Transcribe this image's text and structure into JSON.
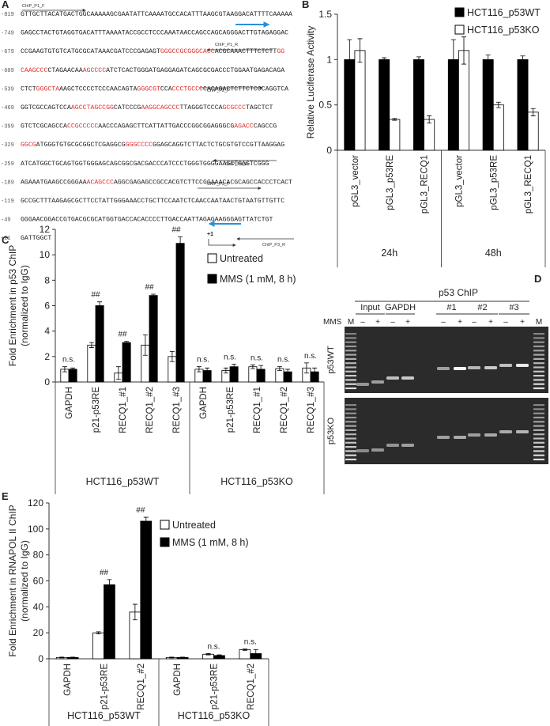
{
  "panels": [
    "A",
    "B",
    "C",
    "D",
    "E"
  ],
  "sequence": {
    "lines": [
      {
        "position": "-819",
        "parts": [
          "GTTGCTTACATGACTGGCAAAAAGCGAATATTCAAAATGCCACATTTAAGCGTAAGGACATTTTCAAAAA"
        ]
      },
      {
        "position": "-749",
        "parts": [
          "GAGCCTACTGTAGGTGACATTTAAAATACCGCCTCCCAAATAACCAGCCAGCAGGGACTTGTAGAGGAC"
        ]
      },
      {
        "position": "-679",
        "parts": [
          "CCGAAGTGTGTCATGCGCATAAACGATCCCGAGAGT",
          {
            "text": "GGGCCGCGGGCACC",
            "color": "#e03030"
          },
          "ACGCAAACTTTCTCTT",
          {
            "text": "GG",
            "color": "#e03030"
          }
        ]
      },
      {
        "position": "-609",
        "parts": [
          {
            "text": "CAAGCCC",
            "color": "#e03030"
          },
          "CTAGAACAA",
          {
            "text": "AGCCCC",
            "color": "#e03030"
          },
          "ATCTCACTGGGATGAGGAGATCAGCGCGACCCTGGAATGAGACAGA"
        ]
      },
      {
        "position": "-539",
        "parts": [
          "CTCT",
          {
            "text": "GGGCTA",
            "color": "#e03030"
          },
          "AAGCTCCCCTCCCAACAGTA",
          {
            "text": "GGGCGT",
            "color": "#e03030"
          },
          "CCA",
          {
            "text": "CCCTGCCC",
            "color": "#e03030"
          },
          "CACAGACTCTTCTCCCAGGTCA"
        ]
      },
      {
        "position": "-469",
        "parts": [
          "GGTCGCCAGTCCA",
          {
            "text": "AGCCTAGCCGG",
            "color": "#e03030"
          },
          "CATCCCG",
          {
            "text": "AAGGCAGCCC",
            "color": "#e03030"
          },
          "TTAGGGTCCCA",
          {
            "text": "GCGCCC",
            "color": "#e03030"
          },
          "TAGCTCT"
        ]
      },
      {
        "position": "-399",
        "parts": [
          "GTCTCGCAGCCA",
          {
            "text": "CCGCCCCC",
            "color": "#e03030"
          },
          "AACCCAGAGCTTCATTATTGACCCGGCGGAGGGCG",
          {
            "text": "AGACC",
            "color": "#e03030"
          },
          "CAGCCG"
        ]
      },
      {
        "position": "-329",
        "parts": [
          {
            "text": "GGCG",
            "color": "#e03030"
          },
          "ATGGGTGTGCGCGGCTCGAGGCG",
          {
            "text": "GGGCCCC",
            "color": "#e03030"
          },
          "GGAGCAGGTCTTACTCTGCGTGTCCGTTAAGGAG"
        ]
      },
      {
        "position": "-259",
        "parts": [
          "ATCATGGCTGCAGTGGTGGGAGCAGCGGCGACGACCCATCCCTGGGTGGGGAAGCTGAGTCGGG"
        ]
      },
      {
        "position": "-189",
        "parts": [
          "AGAAATGAAGCCGGGAA",
          {
            "text": "ACAGCCC",
            "color": "#e03030"
          },
          "AGGCGAGAGCCGCCACGTCTTCCGGAAACACGCAGCCACCCTCACT"
        ]
      },
      {
        "position": "-119",
        "parts": [
          "GCCGCTTTAAGAGCGCTTCCTATTGGGAAACCTGCTTCCAATCTCAACCAATAACTGTAATGTTGTTC"
        ]
      },
      {
        "position": "-49",
        "parts": [
          "GGGAACGGACCGTGACGCGCATGGTGACCACACCCCTTGACCAATTAGAGAAGGGAGTTATCTGT"
        ]
      },
      {
        "position": "+21",
        "parts": [
          "GATTGGCT"
        ]
      }
    ],
    "primers": [
      "ChIP_P1_F",
      "ChIP_P1_R",
      "ChIP_P2_F",
      "ChIP_P2_R",
      "ChIP_P3_F",
      "ChIP_P3_R"
    ],
    "tss": "+1"
  },
  "gel": {
    "title": "p53 ChIP",
    "lanes": [
      "Input",
      "GAPDH",
      "#1",
      "#2",
      "#3"
    ],
    "treatment_label": "MMS",
    "marker": "M",
    "treatments": [
      "–",
      "+"
    ],
    "rows": [
      "p53WT",
      "p53KO"
    ]
  },
  "chart_data": [
    {
      "type": "bar",
      "ylabel": [
        "Relative Luciferase Activity"
      ],
      "categories": [
        "pGL3_vector",
        "pGL3_p53RE",
        "pGL3_RECQ1",
        "pGL3_vector",
        "pGL3_p53RE",
        "pGL3_RECQ1"
      ],
      "groups": [
        "24h",
        "48h"
      ],
      "series": [
        {
          "name": "HCT116_p53WT",
          "color": "#000000",
          "values": [
            1,
            1,
            1,
            1,
            1,
            1
          ],
          "errors": [
            0.22,
            0.02,
            0.03,
            0.22,
            0.05,
            0.04
          ]
        },
        {
          "name": "HCT116_p53KO",
          "color": "#ffffff",
          "values": [
            1.1,
            0.34,
            0.34,
            1.1,
            0.5,
            0.42
          ],
          "errors": [
            0.13,
            0.01,
            0.04,
            0.15,
            0.03,
            0.04
          ]
        }
      ],
      "ylim": [
        0,
        1.5
      ],
      "yticks": [
        0,
        0.5,
        1,
        1.5
      ]
    },
    {
      "type": "bar",
      "ylabel": [
        "Fold Enrichment in p53 ChIP",
        "(normalized to IgG)"
      ],
      "categories": [
        "GAPDH",
        "p21-p53RE",
        "RECQ1_#1",
        "RECQ1_#2",
        "RECQ1_#3",
        "GAPDH",
        "p21-p53RE",
        "RECQ1_#1",
        "RECQ1_#2",
        "RECQ1_#3"
      ],
      "groups": [
        "HCT116_p53WT",
        "HCT116_p53KO"
      ],
      "series": [
        {
          "name": "Untreated",
          "color": "#ffffff",
          "values": [
            1.0,
            2.9,
            0.7,
            2.9,
            2.0,
            1.0,
            0.9,
            1.2,
            1.05,
            1.1
          ],
          "errors": [
            0.2,
            0.2,
            0.5,
            0.8,
            0.4,
            0.2,
            0.2,
            0.15,
            0.15,
            0.4
          ]
        },
        {
          "name": "MMS (1 mM, 8 h)",
          "color": "#000000",
          "values": [
            1.0,
            6.0,
            3.1,
            6.8,
            10.9,
            0.9,
            1.2,
            1.0,
            0.8,
            0.8
          ],
          "errors": [
            0.1,
            0.3,
            0.1,
            0.1,
            0.5,
            0.2,
            0.2,
            0.3,
            0.2,
            0.3
          ]
        }
      ],
      "annotations": [
        "n.s.",
        "##",
        "##",
        "##",
        "##",
        "n.s.",
        "n.s.",
        "n.s.",
        "n.s.",
        "n.s."
      ],
      "ylim": [
        0,
        12
      ],
      "yticks": [
        0,
        2,
        4,
        6,
        8,
        10,
        12
      ]
    },
    {
      "type": "bar",
      "ylabel": [
        "Fold Enrichment in RNAPOL II ChIP",
        "(normalized to IgG)"
      ],
      "categories": [
        "GAPDH",
        "p21-p53RE",
        "RECQ1_#2",
        "GAPDH",
        "p21-p53RE",
        "RECQ1_#2"
      ],
      "groups": [
        "HCT116_p53WT",
        "HCT116_p53KO"
      ],
      "series": [
        {
          "name": "Untreated",
          "color": "#ffffff",
          "values": [
            1,
            20,
            36,
            1,
            3.5,
            7
          ],
          "errors": [
            0.3,
            0.8,
            6,
            0.3,
            0.5,
            0.5
          ]
        },
        {
          "name": "MMS (1 mM, 8 h)",
          "color": "#000000",
          "values": [
            1,
            57,
            106,
            1,
            2.5,
            4
          ],
          "errors": [
            0.3,
            4,
            3,
            0.3,
            0.5,
            3
          ]
        }
      ],
      "annotations": [
        null,
        "##",
        "##",
        null,
        "n.s.",
        "n.s."
      ],
      "ylim": [
        0,
        120
      ],
      "yticks": [
        0,
        20,
        40,
        60,
        80,
        100,
        120
      ]
    }
  ]
}
